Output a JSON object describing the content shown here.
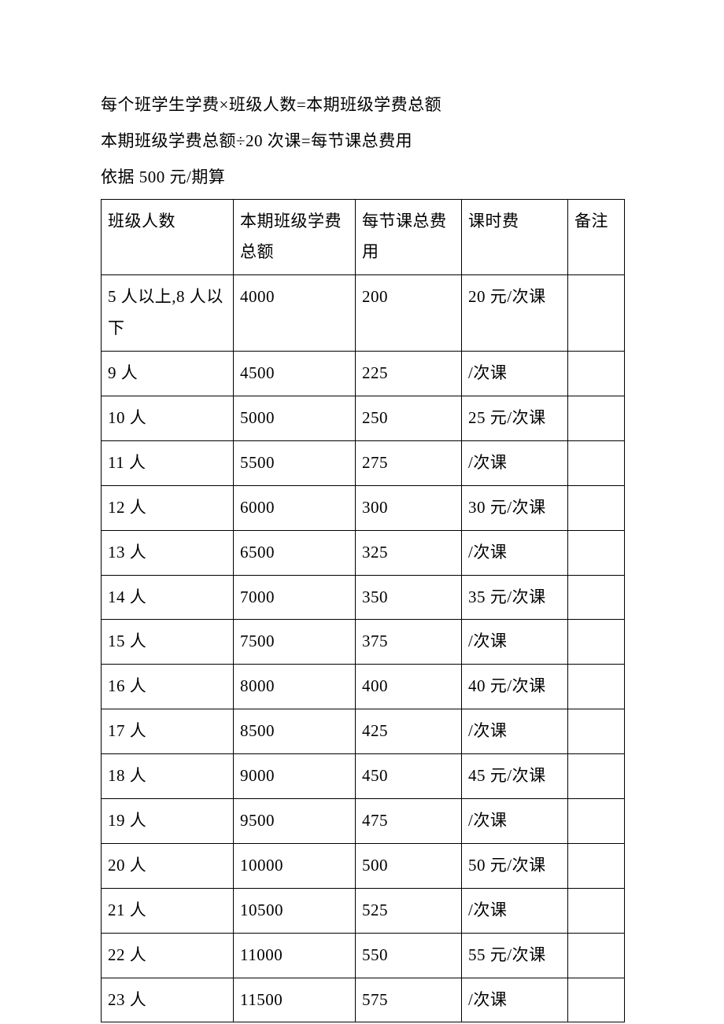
{
  "intro": {
    "line1": "每个班学生学费×班级人数=本期班级学费总额",
    "line2": "本期班级学费总额÷20 次课=每节课总费用",
    "line3": "依据 500 元/期算"
  },
  "table": {
    "columns": [
      "班级人数",
      "本期班级学费总额",
      "每节课总费用",
      "课时费",
      "备注"
    ],
    "rows": [
      [
        "5 人以上,8 人以下",
        "4000",
        "200",
        "20 元/次课",
        ""
      ],
      [
        "9 人",
        "4500",
        "225",
        "/次课",
        ""
      ],
      [
        "10 人",
        "5000",
        "250",
        "25 元/次课",
        ""
      ],
      [
        "11 人",
        "5500",
        "275",
        "/次课",
        ""
      ],
      [
        "12 人",
        "6000",
        "300",
        "30 元/次课",
        ""
      ],
      [
        "13 人",
        "6500",
        "325",
        "/次课",
        ""
      ],
      [
        "14 人",
        "7000",
        "350",
        "35 元/次课",
        ""
      ],
      [
        "15 人",
        "7500",
        "375",
        "/次课",
        ""
      ],
      [
        "16 人",
        "8000",
        "400",
        "40 元/次课",
        ""
      ],
      [
        "17 人",
        "8500",
        "425",
        "/次课",
        ""
      ],
      [
        "18 人",
        "9000",
        "450",
        "45 元/次课",
        ""
      ],
      [
        "19 人",
        "9500",
        "475",
        "/次课",
        ""
      ],
      [
        "20 人",
        "10000",
        "500",
        "50 元/次课",
        ""
      ],
      [
        "21 人",
        "10500",
        "525",
        "/次课",
        ""
      ],
      [
        "22 人",
        "11000",
        "550",
        "55 元/次课",
        ""
      ],
      [
        "23 人",
        "11500",
        "575",
        "/次课",
        ""
      ]
    ],
    "border_color": "#000000",
    "font_size": 21,
    "text_color": "#000000",
    "background_color": "#ffffff"
  }
}
